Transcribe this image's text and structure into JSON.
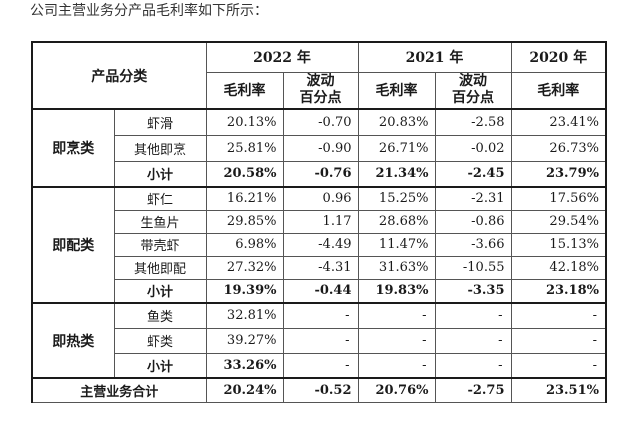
{
  "intro_text": "公司主营业务分产品毛利率如下所示：",
  "header": {
    "category_label": "产品分类",
    "years": [
      "2022 年",
      "2021 年",
      "2020 年"
    ],
    "margin_label": "毛利率",
    "change_label_line1": "波动",
    "change_label_line2": "百分点"
  },
  "groups": [
    {
      "name": "即烹类",
      "rows": [
        {
          "product": "虾滑",
          "v2022": "20.13%",
          "c2022": "-0.70",
          "v2021": "20.83%",
          "c2021": "-2.58",
          "v2020": "23.41%"
        },
        {
          "product": "其他即烹",
          "v2022": "25.81%",
          "c2022": "-0.90",
          "v2021": "26.71%",
          "c2021": "-0.02",
          "v2020": "26.73%"
        }
      ],
      "subtotal": {
        "label": "小计",
        "v2022": "20.58%",
        "c2022": "-0.76",
        "v2021": "21.34%",
        "c2021": "-2.45",
        "v2020": "23.79%"
      }
    },
    {
      "name": "即配类",
      "rows": [
        {
          "product": "虾仁",
          "v2022": "16.21%",
          "c2022": "0.96",
          "v2021": "15.25%",
          "c2021": "-2.31",
          "v2020": "17.56%"
        },
        {
          "product": "生鱼片",
          "v2022": "29.85%",
          "c2022": "1.17",
          "v2021": "28.68%",
          "c2021": "-0.86",
          "v2020": "29.54%"
        },
        {
          "product": "带壳虾",
          "v2022": "6.98%",
          "c2022": "-4.49",
          "v2021": "11.47%",
          "c2021": "-3.66",
          "v2020": "15.13%"
        },
        {
          "product": "其他即配",
          "v2022": "27.32%",
          "c2022": "-4.31",
          "v2021": "31.63%",
          "c2021": "-10.55",
          "v2020": "42.18%"
        }
      ],
      "subtotal": {
        "label": "小计",
        "v2022": "19.39%",
        "c2022": "-0.44",
        "v2021": "19.83%",
        "c2021": "-3.35",
        "v2020": "23.18%"
      }
    },
    {
      "name": "即热类",
      "rows": [
        {
          "product": "鱼类",
          "v2022": "32.81%",
          "c2022": "-",
          "v2021": "-",
          "c2021": "-",
          "v2020": "-"
        },
        {
          "product": "虾类",
          "v2022": "39.27%",
          "c2022": "-",
          "v2021": "-",
          "c2021": "-",
          "v2020": "-"
        }
      ],
      "subtotal": {
        "label": "小计",
        "v2022": "33.26%",
        "c2022": "-",
        "v2021": "-",
        "c2021": "-",
        "v2020": "-"
      }
    }
  ],
  "total": {
    "label": "主营业务合计",
    "v2022": "20.24%",
    "c2022": "-0.52",
    "v2021": "20.76%",
    "c2021": "-2.75",
    "v2020": "23.51%"
  }
}
